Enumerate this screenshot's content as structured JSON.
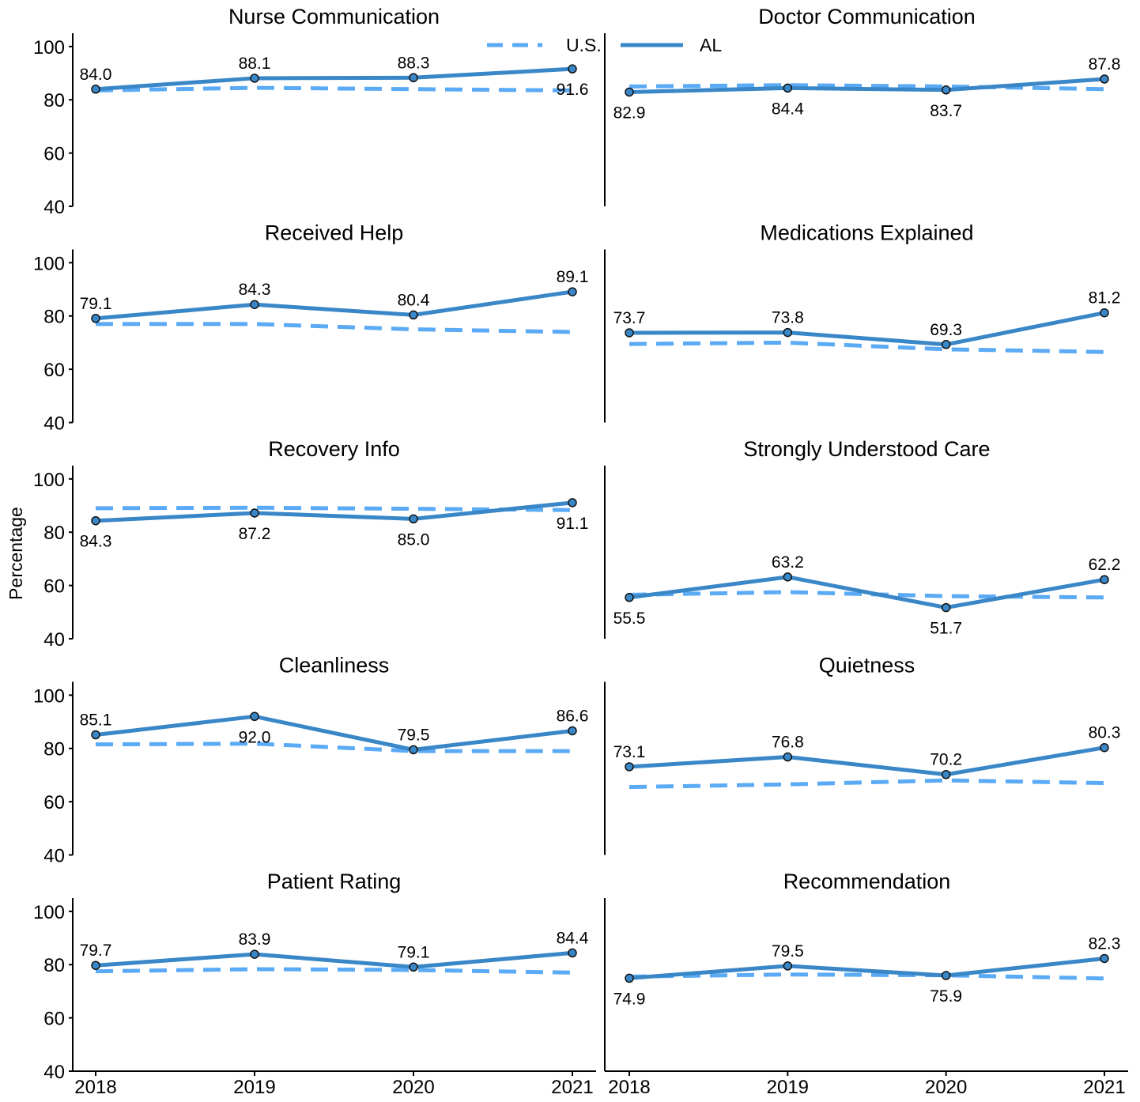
{
  "chart_data": {
    "type": "line",
    "ylabel": "Percentage",
    "ylim": [
      40,
      105
    ],
    "yticks": [
      40,
      60,
      80,
      100
    ],
    "x": [
      "2018",
      "2019",
      "2020",
      "2021"
    ],
    "legend": {
      "placement": "top-center",
      "entries": [
        {
          "name": "U.S.",
          "style": "dashed",
          "color": "#5aaaf5"
        },
        {
          "name": "AL",
          "style": "solid",
          "color": "#3a87c8"
        }
      ]
    },
    "panels": [
      {
        "title": "Nurse Communication",
        "al": [
          84.0,
          88.1,
          88.3,
          91.6
        ],
        "us": [
          83.5,
          84.5,
          84.0,
          83.5
        ],
        "labels": [
          "84.0",
          "88.1",
          "88.3",
          "91.6"
        ],
        "label_pos": [
          "above",
          "above",
          "above",
          "below"
        ]
      },
      {
        "title": "Doctor Communication",
        "al": [
          82.9,
          84.4,
          83.7,
          87.8
        ],
        "us": [
          85.0,
          85.5,
          85.0,
          84.0
        ],
        "labels": [
          "82.9",
          "84.4",
          "83.7",
          "87.8"
        ],
        "label_pos": [
          "below",
          "below",
          "below",
          "above"
        ]
      },
      {
        "title": "Received Help",
        "al": [
          79.1,
          84.3,
          80.4,
          89.1
        ],
        "us": [
          77.0,
          77.0,
          75.0,
          74.0
        ],
        "labels": [
          "79.1",
          "84.3",
          "80.4",
          "89.1"
        ],
        "label_pos": [
          "above",
          "above",
          "above",
          "above"
        ]
      },
      {
        "title": "Medications Explained",
        "al": [
          73.7,
          73.8,
          69.3,
          81.2
        ],
        "us": [
          69.5,
          70.0,
          67.5,
          66.5
        ],
        "labels": [
          "73.7",
          "73.8",
          "69.3",
          "81.2"
        ],
        "label_pos": [
          "above",
          "above",
          "above",
          "above"
        ]
      },
      {
        "title": "Recovery Info",
        "al": [
          84.3,
          87.2,
          85.0,
          91.1
        ],
        "us": [
          89.0,
          89.2,
          88.8,
          88.3
        ],
        "labels": [
          "84.3",
          "87.2",
          "85.0",
          "91.1"
        ],
        "label_pos": [
          "below",
          "below",
          "below",
          "below"
        ]
      },
      {
        "title": "Strongly Understood Care",
        "al": [
          55.5,
          63.2,
          51.7,
          62.2
        ],
        "us": [
          56.5,
          57.5,
          56.0,
          55.5
        ],
        "labels": [
          "55.5",
          "63.2",
          "51.7",
          "62.2"
        ],
        "label_pos": [
          "below",
          "above",
          "below",
          "above"
        ]
      },
      {
        "title": "Cleanliness",
        "al": [
          85.1,
          92.0,
          79.5,
          86.6
        ],
        "us": [
          81.5,
          81.8,
          79.0,
          79.0
        ],
        "labels": [
          "85.1",
          "92.0",
          "79.5",
          "86.6"
        ],
        "label_pos": [
          "above",
          "below",
          "above",
          "above"
        ]
      },
      {
        "title": "Quietness",
        "al": [
          73.1,
          76.8,
          70.2,
          80.3
        ],
        "us": [
          65.5,
          66.5,
          68.0,
          67.0
        ],
        "labels": [
          "73.1",
          "76.8",
          "70.2",
          "80.3"
        ],
        "label_pos": [
          "above",
          "above",
          "above",
          "above"
        ]
      },
      {
        "title": "Patient Rating",
        "al": [
          79.7,
          83.9,
          79.1,
          84.4
        ],
        "us": [
          77.5,
          78.3,
          78.0,
          77.0
        ],
        "labels": [
          "79.7",
          "83.9",
          "79.1",
          "84.4"
        ],
        "label_pos": [
          "above",
          "above",
          "above",
          "above"
        ]
      },
      {
        "title": "Recommendation",
        "al": [
          74.9,
          79.5,
          75.9,
          82.3
        ],
        "us": [
          75.5,
          76.3,
          76.0,
          74.8
        ],
        "labels": [
          "74.9",
          "79.5",
          "75.9",
          "82.3"
        ],
        "label_pos": [
          "below",
          "above",
          "below",
          "above"
        ]
      }
    ]
  }
}
